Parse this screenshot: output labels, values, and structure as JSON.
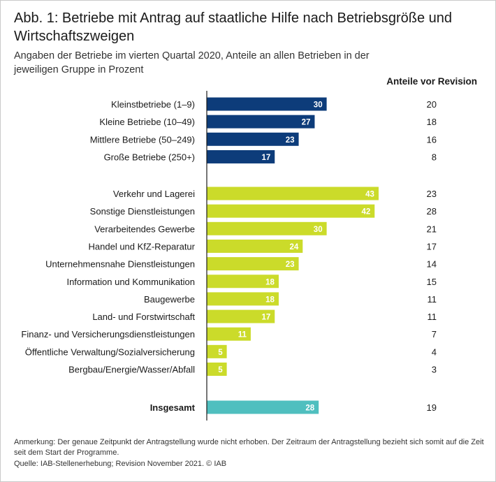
{
  "title": "Abb. 1: Betriebe mit Antrag auf staatliche Hilfe nach Betriebsgröße und Wirtschaftszweigen",
  "subtitle": "Angaben der Betriebe im vierten Quartal 2020, Anteile an allen Betrieben in der jeweiligen Gruppe in Prozent",
  "revision_header": "Anteile vor Revision",
  "note": "Anmerkung: Der genaue Zeitpunkt der Antragstellung wurde nicht erhoben. Der Zeitraum der Antragstellung bezieht sich somit auf die Zeit seit dem Start der Programme.",
  "source": "Quelle: IAB-Stellenerhebung; Revision November 2021. © IAB",
  "colors": {
    "size_group": "#0d3c7a",
    "sector_group": "#cbdb2a",
    "total": "#4fbfbf",
    "axis": "#1a1a1a"
  },
  "chart_data": {
    "type": "bar",
    "orientation": "horizontal",
    "title": "Abb. 1: Betriebe mit Antrag auf staatliche Hilfe nach Betriebsgröße und Wirtschaftszweigen",
    "xlim": [
      0,
      45
    ],
    "grid": false,
    "groups": [
      {
        "name": "size",
        "color": "#0d3c7a",
        "categories": [
          "Kleinstbetriebe (1–9)",
          "Kleine Betriebe (10–49)",
          "Mittlere Betriebe (50–249)",
          "Große Betriebe (250+)"
        ],
        "values": [
          30,
          27,
          23,
          17
        ],
        "values_before_revision": [
          20,
          18,
          16,
          8
        ]
      },
      {
        "name": "sector",
        "color": "#cbdb2a",
        "categories": [
          "Verkehr und Lagerei",
          "Sonstige Dienstleistungen",
          "Verarbeitendes Gewerbe",
          "Handel und KfZ-Reparatur",
          "Unternehmensnahe Dienstleistungen",
          "Information und Kommunikation",
          "Baugewerbe",
          "Land- und Forstwirtschaft",
          "Finanz- und Versicherungsdienstleistungen",
          "Öffentliche Verwaltung/Sozialversicherung",
          "Bergbau/Energie/Wasser/Abfall"
        ],
        "values": [
          43,
          42,
          30,
          24,
          23,
          18,
          18,
          17,
          11,
          5,
          5
        ],
        "values_before_revision": [
          23,
          28,
          21,
          17,
          14,
          15,
          11,
          11,
          7,
          4,
          3
        ]
      },
      {
        "name": "total",
        "color": "#4fbfbf",
        "bold": true,
        "categories": [
          "Insgesamt"
        ],
        "values": [
          28
        ],
        "values_before_revision": [
          19
        ]
      }
    ]
  }
}
